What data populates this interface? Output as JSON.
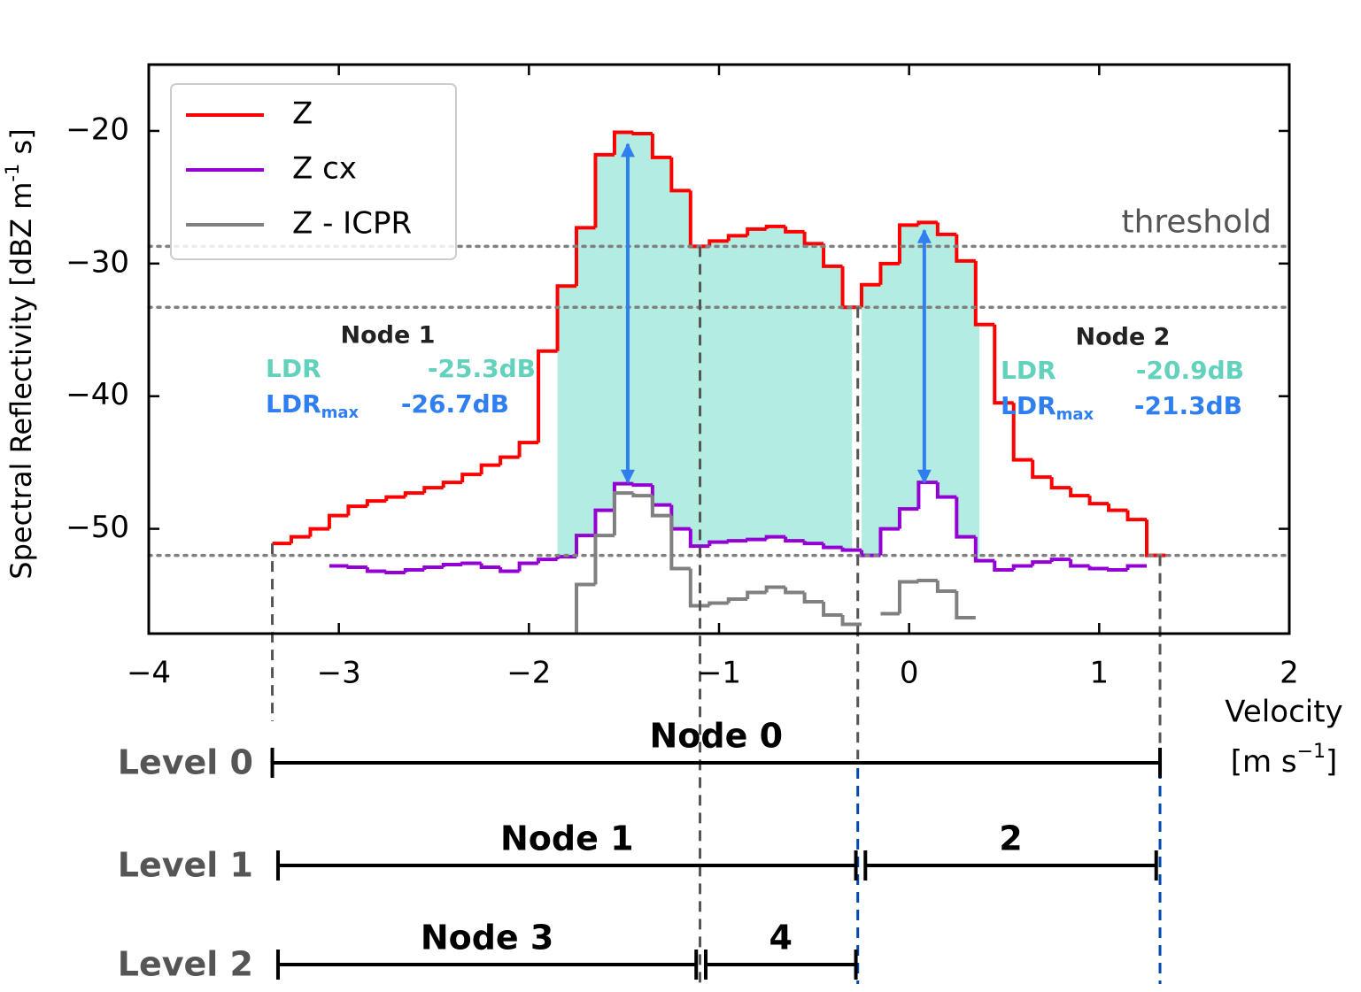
{
  "chart_data": {
    "type": "step",
    "xlabel": [
      "Velocity",
      "[m s",
      "−1",
      "]"
    ],
    "ylabel": [
      "Spectral Reflectivity [dBZ m",
      "-1",
      " s]"
    ],
    "xlim": [
      -4,
      2
    ],
    "ylim": [
      -57.9,
      -15
    ],
    "xticks": [
      {
        "value": -4,
        "label": "−4"
      },
      {
        "value": -3,
        "label": "−3"
      },
      {
        "value": -2,
        "label": "−2"
      },
      {
        "value": -1,
        "label": "−1"
      },
      0,
      1,
      2
    ],
    "yticks": [
      {
        "value": -20,
        "label": "−20"
      },
      {
        "value": -30,
        "label": "−30"
      },
      {
        "value": -40,
        "label": "−40"
      },
      {
        "value": -50,
        "label": "−50"
      }
    ],
    "legend": "upper left",
    "series": [
      {
        "name": "Z",
        "color": "#ff0000",
        "x": [
          -3.3,
          -3.2,
          -3.1,
          -3.0,
          -2.9,
          -2.8,
          -2.7,
          -2.6,
          -2.5,
          -2.4,
          -2.3,
          -2.2,
          -2.1,
          -2.0,
          -1.9,
          -1.8,
          -1.7,
          -1.6,
          -1.5,
          -1.4,
          -1.3,
          -1.2,
          -1.1,
          -1.0,
          -0.9,
          -0.8,
          -0.7,
          -0.6,
          -0.5,
          -0.4,
          -0.3,
          -0.2,
          -0.1,
          0.0,
          0.1,
          0.2,
          0.3,
          0.4,
          0.5,
          0.6,
          0.7,
          0.8,
          0.9,
          1.0,
          1.1,
          1.2,
          1.3
        ],
        "values": [
          -51.1,
          -50.6,
          -50.0,
          -49.0,
          -48.3,
          -47.9,
          -47.6,
          -47.3,
          -46.9,
          -46.5,
          -45.9,
          -45.2,
          -44.6,
          -43.5,
          -36.6,
          -31.7,
          -27.3,
          -21.8,
          -20.1,
          -20.2,
          -22.0,
          -24.5,
          -28.7,
          -28.3,
          -27.9,
          -27.4,
          -27.2,
          -27.6,
          -28.5,
          -30.2,
          -33.3,
          -31.6,
          -30.0,
          -27.1,
          -26.9,
          -27.8,
          -29.8,
          -34.6,
          -40.5,
          -44.8,
          -46.1,
          -46.9,
          -47.5,
          -48.1,
          -48.6,
          -49.3,
          -52.0
        ]
      },
      {
        "name": "Z cx",
        "color": "#9400d3",
        "x": [
          -3.0,
          -2.9,
          -2.8,
          -2.7,
          -2.6,
          -2.5,
          -2.4,
          -2.3,
          -2.2,
          -2.1,
          -2.0,
          -1.9,
          -1.8,
          -1.7,
          -1.6,
          -1.5,
          -1.4,
          -1.3,
          -1.2,
          -1.1,
          -1.0,
          -0.9,
          -0.8,
          -0.7,
          -0.6,
          -0.5,
          -0.4,
          -0.3,
          -0.2,
          -0.1,
          0.0,
          0.1,
          0.2,
          0.3,
          0.4,
          0.5,
          0.6,
          0.7,
          0.8,
          0.9,
          1.0,
          1.1,
          1.2
        ],
        "values": [
          -52.8,
          -52.9,
          -53.2,
          -53.3,
          -53.1,
          -52.9,
          -52.7,
          -52.6,
          -52.9,
          -53.2,
          -52.6,
          -52.3,
          -52.1,
          -50.5,
          -48.6,
          -46.6,
          -46.7,
          -48.2,
          -50.0,
          -51.3,
          -51.0,
          -50.9,
          -50.8,
          -50.6,
          -50.9,
          -51.1,
          -51.4,
          -51.6,
          -52.0,
          -50.0,
          -48.5,
          -46.5,
          -47.6,
          -50.6,
          -52.4,
          -53.1,
          -52.8,
          -52.5,
          -52.3,
          -52.8,
          -53.0,
          -53.1,
          -52.8
        ]
      },
      {
        "name": "Z - ICPR",
        "color": "#808080",
        "x": [
          -1.8,
          -1.7,
          -1.6,
          -1.5,
          -1.4,
          -1.3,
          -1.2,
          -1.1,
          -1.0,
          -0.9,
          -0.8,
          -0.7,
          -0.6,
          -0.5,
          -0.4,
          -0.3,
          -0.2,
          -0.1,
          0.0,
          0.1,
          0.2,
          0.3
        ],
        "values": [
          -58.5,
          -54.2,
          -50.5,
          -47.3,
          -47.5,
          -49.0,
          -53.0,
          -55.8,
          -55.6,
          -55.3,
          -54.8,
          -54.4,
          -54.8,
          -55.5,
          -56.5,
          -57.2,
          null,
          -56.4,
          -54.0,
          -53.9,
          -54.7,
          -56.7
        ]
      }
    ],
    "shaded_ranges": [
      [
        -1.85,
        -0.3
      ],
      [
        -0.25,
        0.37
      ]
    ],
    "thresholds": [
      -28.7,
      -33.3,
      -52.0
    ],
    "threshold_label": "threshold",
    "arrows": [
      {
        "x": -1.48,
        "y": [
          -21.0,
          -46.5
        ]
      },
      {
        "x": 0.08,
        "y": [
          -27.5,
          -46.5
        ]
      }
    ],
    "node_annotations": [
      {
        "title": "Node 1",
        "ldr_label": "LDR",
        "ldr": "-25.3dB",
        "ldrmax_label": "LDR",
        "ldrmax_sub": "max",
        "ldrmax": "-26.7dB"
      },
      {
        "title": "Node 2",
        "ldr_label": "LDR",
        "ldr": "-20.9dB",
        "ldrmax_label": "LDR",
        "ldrmax_sub": "max",
        "ldrmax": "-21.3dB"
      }
    ],
    "separators": [
      {
        "x": -3.35,
        "y": -51.1
      },
      {
        "x": -1.1,
        "y": -28.7
      },
      {
        "x": -0.27,
        "y": -33.3
      },
      {
        "x": 1.32,
        "y": -52.0
      }
    ],
    "tree": {
      "levels": [
        {
          "label": "Level 0",
          "nodes": [
            {
              "label": "Node 0",
              "range": [
                -3.35,
                1.32
              ]
            }
          ]
        },
        {
          "label": "Level 1",
          "nodes": [
            {
              "label": "Node 1",
              "range": [
                -3.32,
                -0.28
              ]
            },
            {
              "label": "2",
              "range": [
                -0.23,
                1.3
              ]
            }
          ]
        },
        {
          "label": "Level 2",
          "nodes": [
            {
              "label": "Node 3",
              "range": [
                -3.32,
                -1.12
              ]
            },
            {
              "label": "4",
              "range": [
                -1.07,
                -0.28
              ]
            }
          ]
        }
      ]
    }
  }
}
